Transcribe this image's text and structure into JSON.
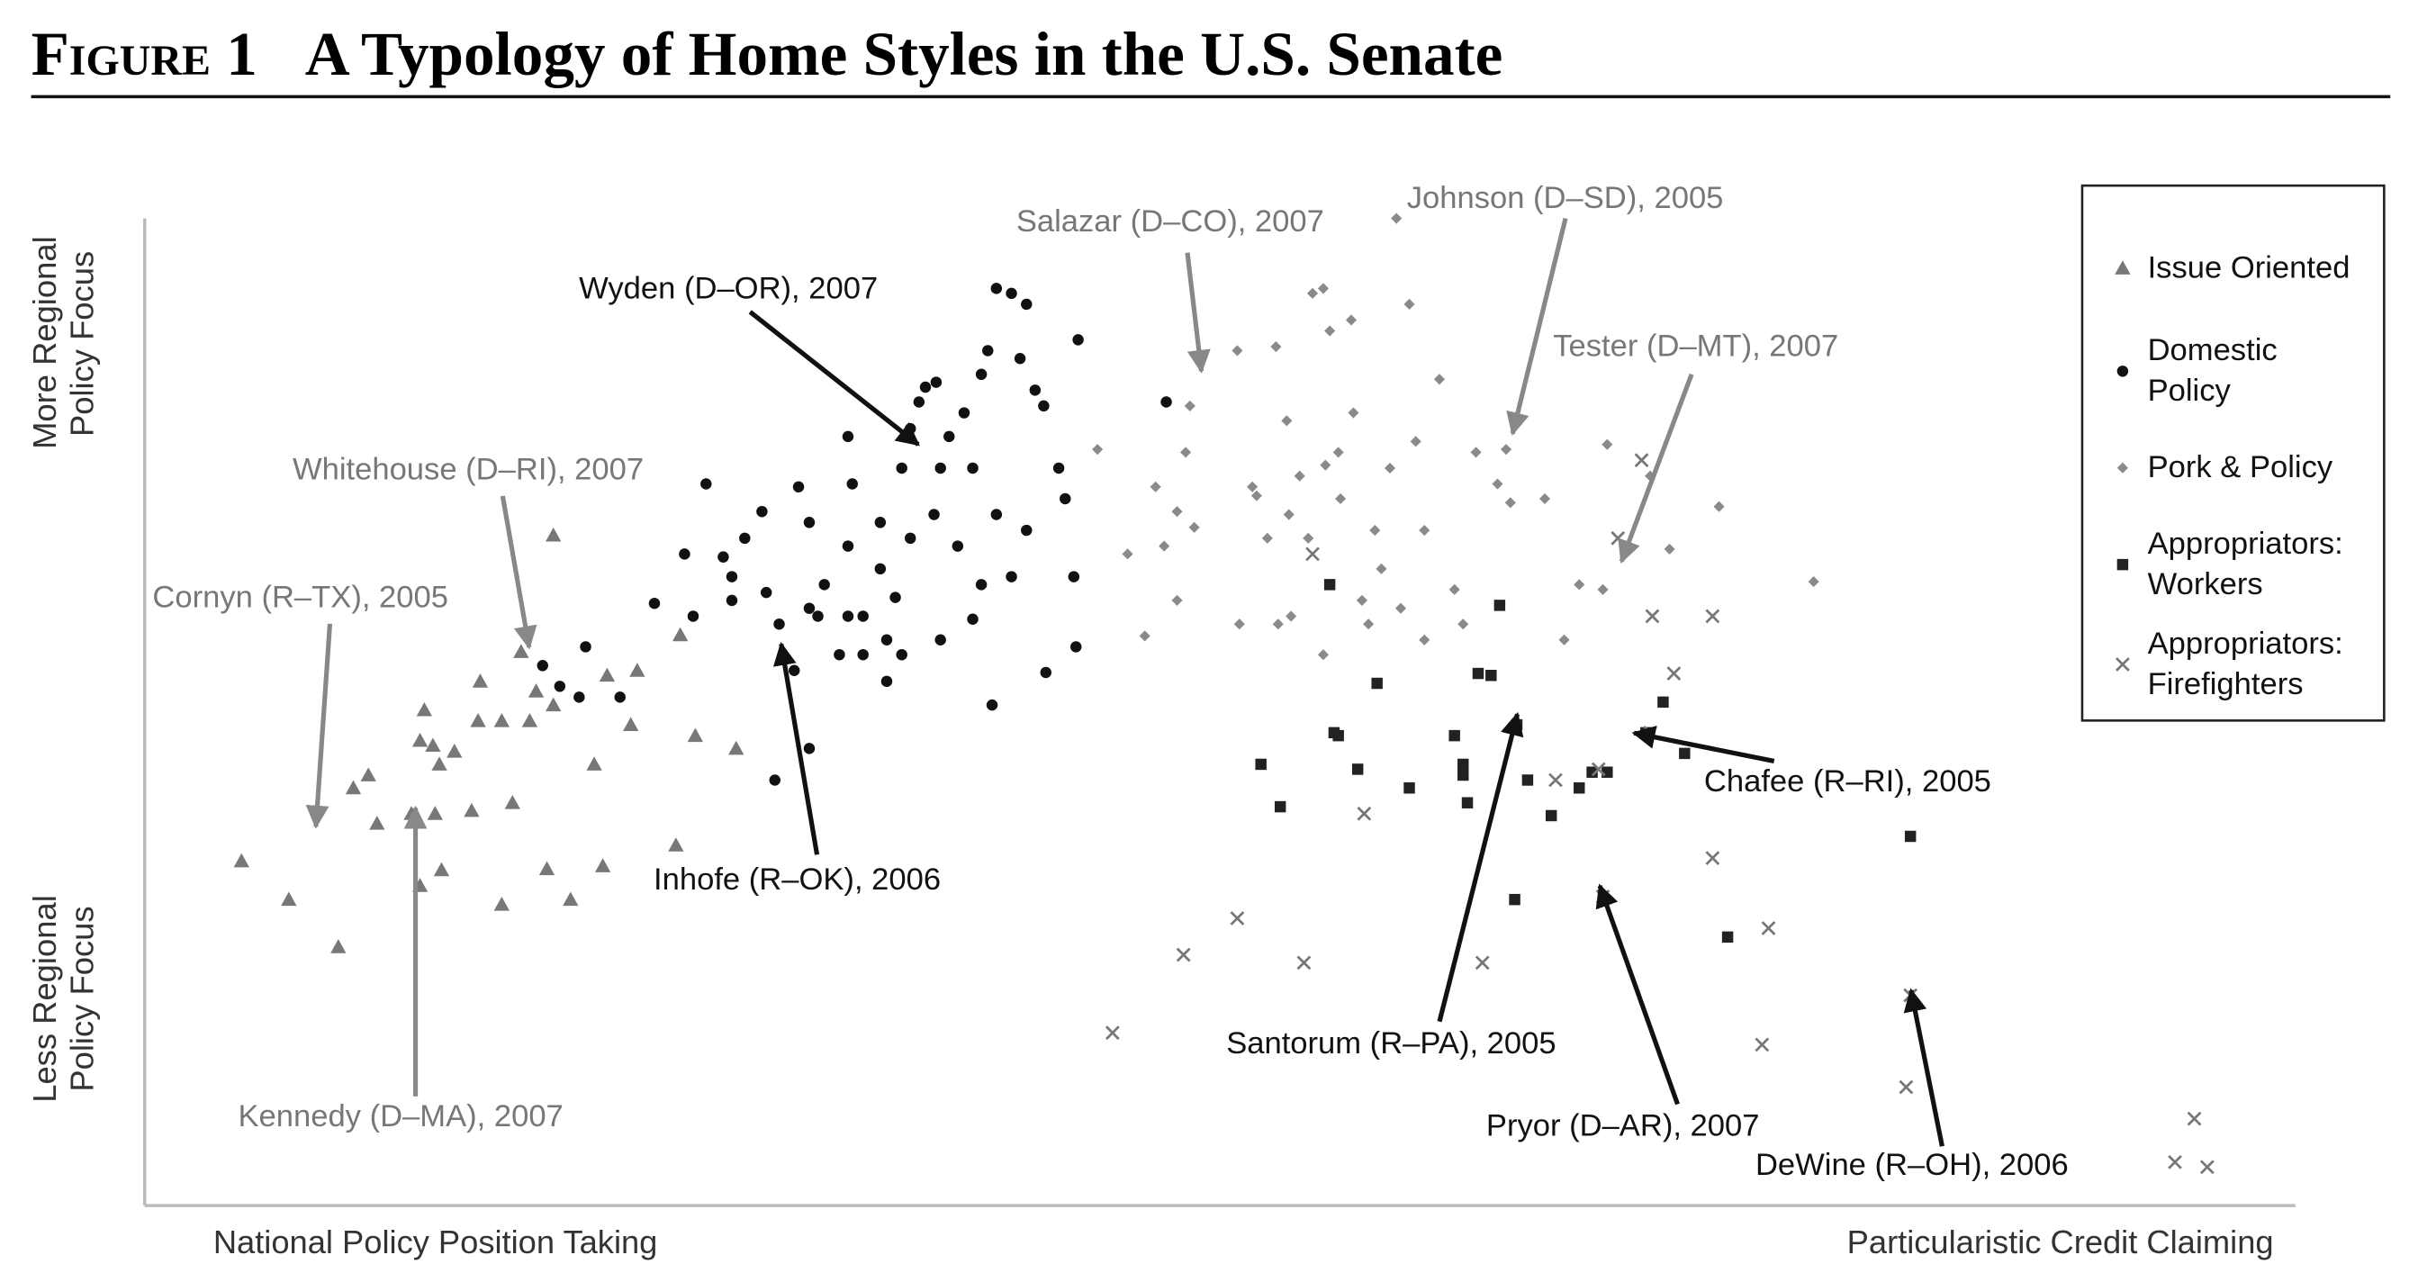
{
  "chart_data": {
    "type": "scatter",
    "figure_label": "Figure 1",
    "title": "A Typology of Home Styles in the U.S. Senate",
    "x_label_left": "National Policy Position Taking",
    "x_label_right": "Particularistic Credit Claiming",
    "y_label_top": "More Regional Policy Focus",
    "y_label_bottom": "Less Regional Policy Focus",
    "xlim": [
      0,
      100
    ],
    "ylim": [
      0,
      100
    ],
    "legend": "upper right",
    "series": [
      {
        "name": "Issue Oriented",
        "color": "#777777",
        "marker": "triangle",
        "x": [
          4.5,
          6.7,
          9.0,
          9.7,
          10.4,
          10.8,
          12.4,
          13.0,
          12.8,
          13.4,
          13.7,
          14.4,
          13.5,
          12.8,
          13.8,
          15.2,
          15.6,
          15.5,
          16.6,
          17.1,
          16.6,
          17.9,
          17.5,
          18.2,
          18.7,
          19.0,
          19.0,
          19.8,
          20.9,
          21.3,
          21.5,
          22.6,
          22.9,
          24.7,
          24.9,
          25.6,
          27.5
        ],
        "y": [
          34.9,
          31.0,
          26.2,
          42.3,
          43.6,
          38.7,
          39.7,
          50.2,
          47.1,
          46.6,
          44.7,
          46.0,
          39.7,
          32.4,
          34.0,
          40.0,
          53.1,
          49.1,
          49.1,
          40.8,
          30.5,
          49.1,
          56.1,
          52.1,
          34.1,
          50.7,
          67.9,
          31.0,
          44.7,
          34.4,
          53.7,
          48.7,
          54.2,
          36.5,
          57.8,
          47.6,
          46.3
        ]
      },
      {
        "name": "Domestic Policy",
        "color": "#111111",
        "marker": "circle",
        "x": [
          18.5,
          19.3,
          20.5,
          20.2,
          22.1,
          23.7,
          25.1,
          26.1,
          26.9,
          27.3,
          27.9,
          28.7,
          28.9,
          29.5,
          29.3,
          30.9,
          30.4,
          30.9,
          31.6,
          32.7,
          32.9,
          32.7,
          33.4,
          34.2,
          34.5,
          34.9,
          35.2,
          35.6,
          36.0,
          36.3,
          36.8,
          36.7,
          37.4,
          38.1,
          38.5,
          38.9,
          39.2,
          39.6,
          40.3,
          40.7,
          41.0,
          41.4,
          41.8,
          42.5,
          42.8,
          43.2,
          43.3,
          43.4,
          41.9,
          39.4,
          38.9,
          38.5,
          37.8,
          37.0,
          35.6,
          34.5,
          33.4,
          32.3,
          31.3,
          30.2,
          27.3,
          25.5,
          37.0,
          40.3,
          41.0,
          39.6,
          35.2,
          32.7,
          34.2,
          30.9,
          47.5
        ],
        "y": [
          54.7,
          52.6,
          56.6,
          51.5,
          51.5,
          61.0,
          66.0,
          73.1,
          65.7,
          63.7,
          67.6,
          70.3,
          62.1,
          58.9,
          43.1,
          46.3,
          72.8,
          60.5,
          62.9,
          66.8,
          73.1,
          77.9,
          55.8,
          64.5,
          53.1,
          61.6,
          74.7,
          78.7,
          81.4,
          82.9,
          83.4,
          70.0,
          77.9,
          80.3,
          74.7,
          84.2,
          86.6,
          92.9,
          92.4,
          85.8,
          91.3,
          82.6,
          81.0,
          74.7,
          71.6,
          63.7,
          56.6,
          87.7,
          54.0,
          50.7,
          62.9,
          59.4,
          66.8,
          57.3,
          67.6,
          57.3,
          59.7,
          55.8,
          59.7,
          54.2,
          61.3,
          59.7,
          74.7,
          63.7,
          68.4,
          70.0,
          55.8,
          59.7,
          69.2,
          69.2,
          81.4
        ]
      },
      {
        "name": "Pork & Policy",
        "color": "#8a8a8a",
        "marker": "diamond",
        "x": [
          44.3,
          45.7,
          46.5,
          47.0,
          47.4,
          48.0,
          48.4,
          48.6,
          48.8,
          48.0,
          50.9,
          50.8,
          51.5,
          51.7,
          52.2,
          52.6,
          52.7,
          53.1,
          53.2,
          53.7,
          54.1,
          54.3,
          54.8,
          54.9,
          55.1,
          55.5,
          55.6,
          56.1,
          56.2,
          56.6,
          56.9,
          57.2,
          57.5,
          57.9,
          58.2,
          58.4,
          58.8,
          59.1,
          59.5,
          59.5,
          60.2,
          60.9,
          61.3,
          61.9,
          62.9,
          63.3,
          63.5,
          65.1,
          66.0,
          66.7,
          67.8,
          68.0,
          70.0,
          70.9,
          73.2,
          77.6,
          54.8,
          53.3
        ],
        "y": [
          76.6,
          66.0,
          57.7,
          72.8,
          66.8,
          70.3,
          76.3,
          81.0,
          68.7,
          61.3,
          58.9,
          86.6,
          72.8,
          71.9,
          67.6,
          87.0,
          58.9,
          79.5,
          70.0,
          73.9,
          67.6,
          92.4,
          92.9,
          75.0,
          88.6,
          76.3,
          71.6,
          89.7,
          80.3,
          61.3,
          58.9,
          68.4,
          64.5,
          74.7,
          100,
          60.5,
          91.3,
          77.4,
          68.4,
          57.3,
          83.7,
          62.4,
          58.9,
          76.3,
          73.1,
          76.6,
          71.2,
          71.6,
          57.3,
          62.9,
          62.4,
          77.1,
          73.9,
          66.5,
          70.8,
          63.2,
          55.8,
          59.7
        ]
      },
      {
        "name": "Appropriators: Workers",
        "color": "#222222",
        "marker": "square",
        "x": [
          55.1,
          55.3,
          55.5,
          57.3,
          62.0,
          62.6,
          63.0,
          60.9,
          61.3,
          61.5,
          61.3,
          63.8,
          64.3,
          65.4,
          66.7,
          67.3,
          69.8,
          70.6,
          71.6,
          51.9,
          52.8,
          56.4,
          58.8,
          63.7,
          73.6,
          82.1,
          68.0
        ],
        "y": [
          62.9,
          47.9,
          47.6,
          52.9,
          53.9,
          53.7,
          60.8,
          47.6,
          44.7,
          40.8,
          43.6,
          48.7,
          43.1,
          39.5,
          42.3,
          43.9,
          47.9,
          51.0,
          45.8,
          44.7,
          40.4,
          44.2,
          42.3,
          31.0,
          27.2,
          37.4,
          43.9
        ]
      },
      {
        "name": "Appropriators: Firefighters",
        "color": "#777777",
        "marker": "x",
        "x": [
          45.0,
          48.3,
          50.8,
          53.9,
          56.7,
          62.2,
          65.6,
          67.6,
          67.8,
          68.5,
          69.6,
          70.1,
          71.1,
          72.9,
          72.9,
          75.5,
          75.2,
          82.1,
          81.9,
          95.3,
          94.4,
          95.9,
          54.3,
          70.0
        ],
        "y": [
          17.5,
          25.4,
          29.1,
          24.6,
          39.7,
          24.6,
          43.1,
          44.2,
          31.3,
          67.6,
          75.5,
          59.7,
          53.9,
          59.7,
          35.2,
          28.1,
          16.3,
          21.3,
          12.0,
          8.8,
          4.4,
          3.9,
          66.0,
          47.9
        ]
      }
    ],
    "annotations": [
      {
        "text": "Salazar (D–CO), 2007",
        "color": "#888888"
      },
      {
        "text": "Johnson (D–SD), 2005",
        "color": "#888888"
      },
      {
        "text": "Tester (D–MT), 2007",
        "color": "#888888"
      },
      {
        "text": "Wyden (D–OR), 2007",
        "color": "#111111"
      },
      {
        "text": "Whitehouse (D–RI), 2007",
        "color": "#888888"
      },
      {
        "text": "Cornyn (R–TX), 2005",
        "color": "#888888"
      },
      {
        "text": "Kennedy (D–MA), 2007",
        "color": "#888888"
      },
      {
        "text": "Inhofe (R–OK), 2006",
        "color": "#111111"
      },
      {
        "text": "Chafee (R–RI), 2005",
        "color": "#111111"
      },
      {
        "text": "Santorum (R–PA), 2005",
        "color": "#111111"
      },
      {
        "text": "Pryor (D–AR), 2007",
        "color": "#111111"
      },
      {
        "text": "DeWine (R–OH), 2006",
        "color": "#111111"
      }
    ]
  }
}
